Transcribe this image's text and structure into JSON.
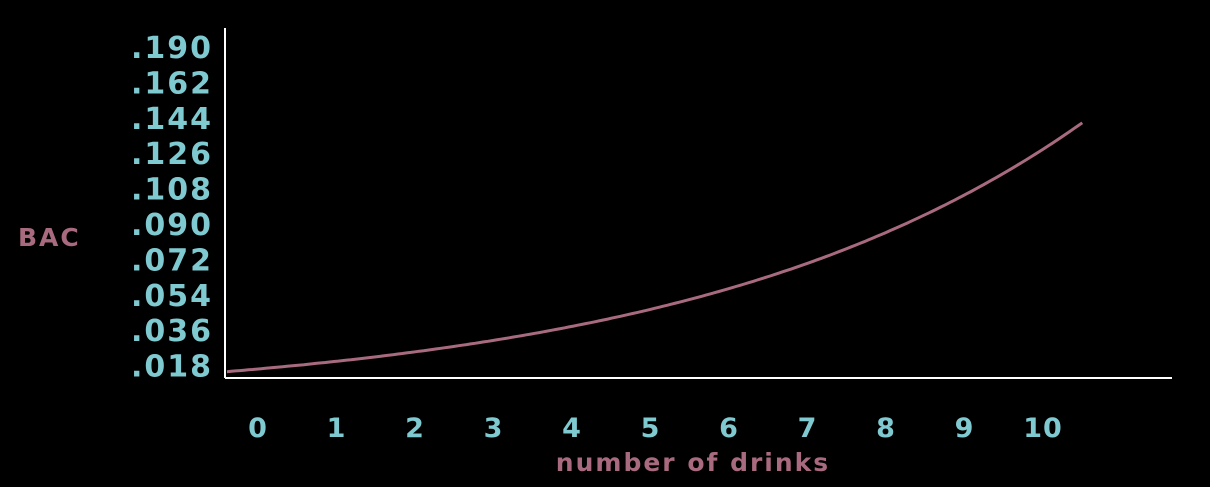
{
  "chart_data": {
    "type": "line",
    "title": "",
    "xlabel": "number of drinks",
    "ylabel": "BAC",
    "x_ticks": [
      "0",
      "1",
      "2",
      "3",
      "4",
      "5",
      "6",
      "7",
      "8",
      "9",
      "10"
    ],
    "y_ticks": [
      ".018",
      ".036",
      ".054",
      ".072",
      ".090",
      ".108",
      ".126",
      ".144",
      ".162",
      ".190"
    ],
    "x": [
      0,
      1,
      2,
      3,
      4,
      5,
      6,
      7,
      8,
      9,
      10,
      10.5
    ],
    "y": [
      0.018,
      0.0215,
      0.026,
      0.031,
      0.038,
      0.046,
      0.056,
      0.068,
      0.083,
      0.102,
      0.127,
      0.143
    ],
    "grid": false,
    "legend": "none",
    "colors": {
      "background": "#000000",
      "tick_text": "#7fc9d0",
      "label_text": "#a86a7e",
      "curve": "#a86a7e",
      "axis": "#ffffff"
    }
  }
}
